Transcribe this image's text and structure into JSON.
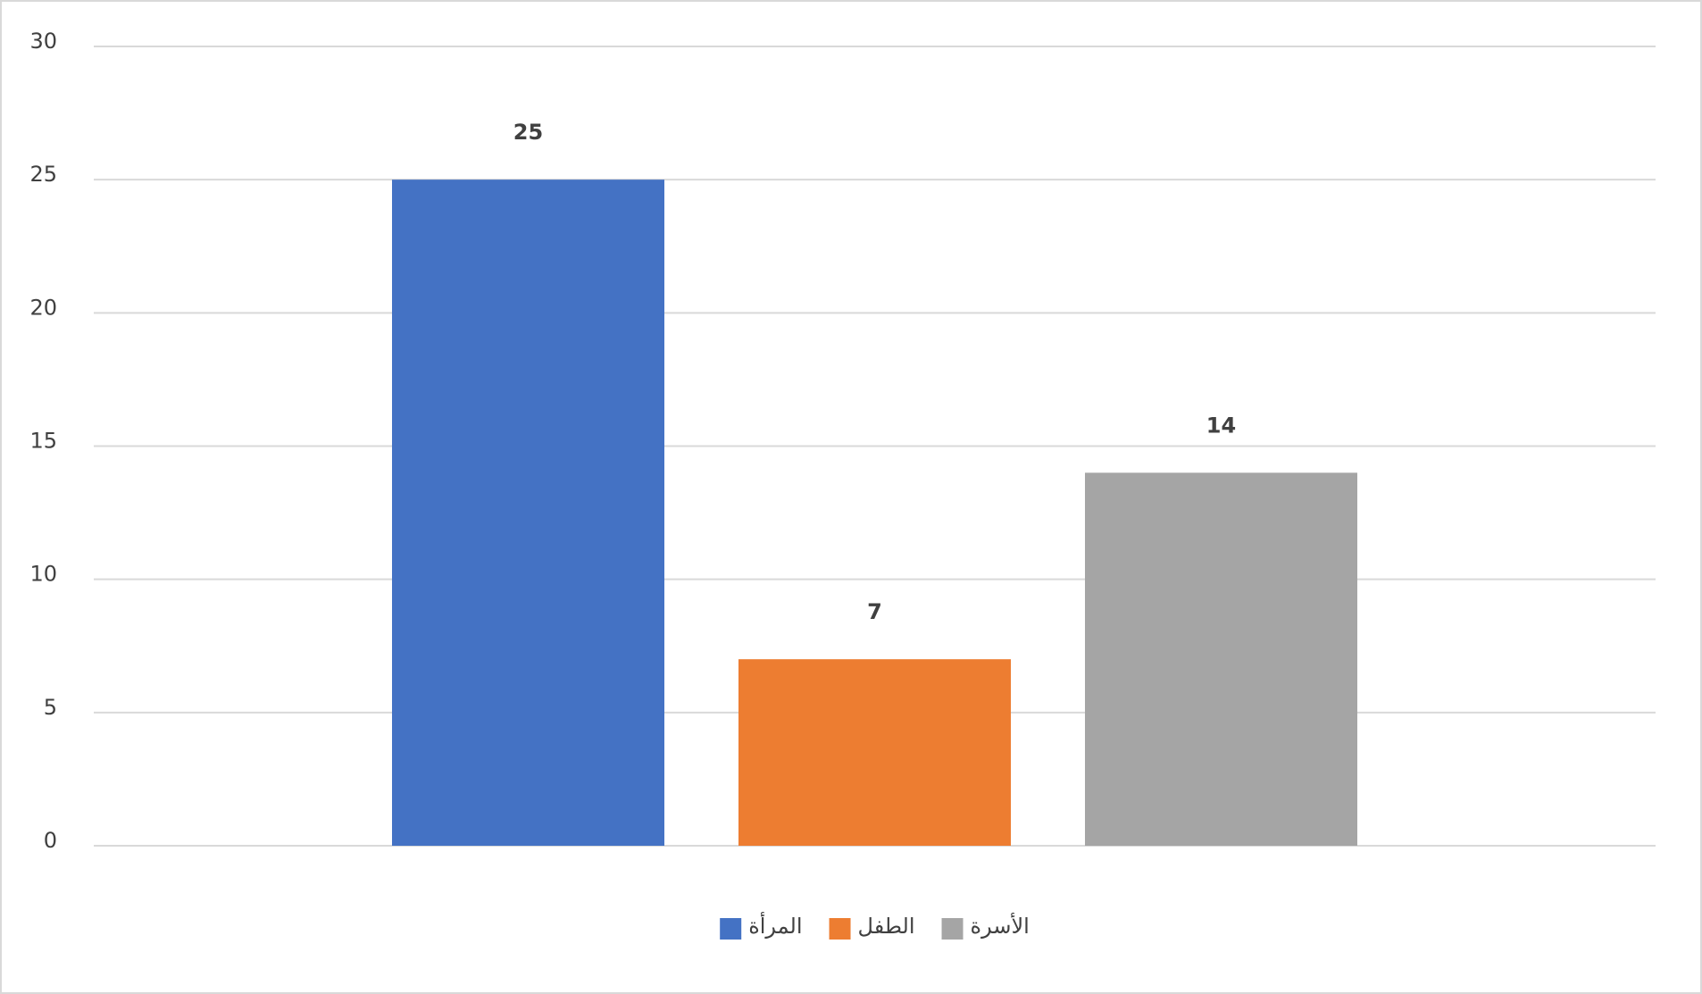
{
  "chart_data": {
    "type": "bar",
    "categories": [
      null
    ],
    "series": [
      {
        "name": "المرأة",
        "color": "#4472c4",
        "values": [
          25
        ]
      },
      {
        "name": "الطفل",
        "color": "#ed7d31",
        "values": [
          7
        ]
      },
      {
        "name": "الأسرة",
        "color": "#a5a5a5",
        "values": [
          14
        ]
      }
    ],
    "ylim": [
      0,
      30
    ],
    "yticks": [
      0,
      5,
      10,
      15,
      20,
      25,
      30
    ],
    "grid": true,
    "legend": "bottom"
  }
}
